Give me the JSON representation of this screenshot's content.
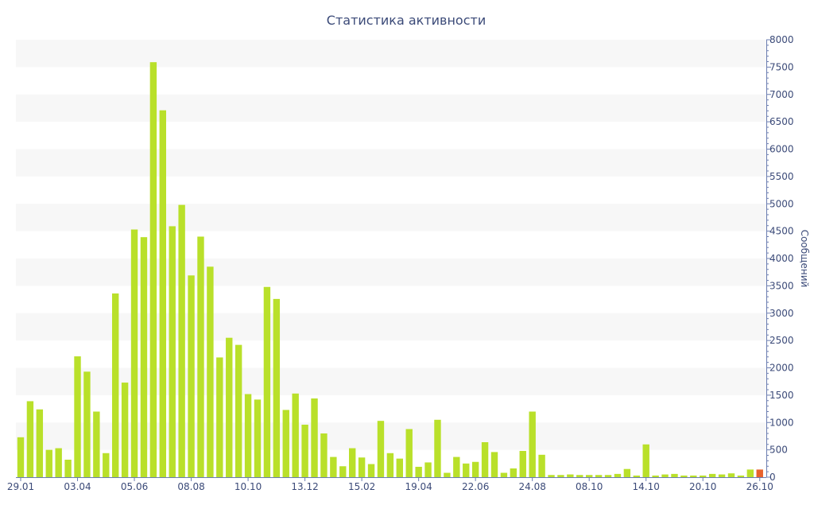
{
  "chart_data": {
    "type": "bar",
    "title": "Статистика активности",
    "ylabel": "Сообщений",
    "xlabel": "",
    "ylim": [
      0,
      8000
    ],
    "y_axis_side": "right",
    "y_ticks": [
      0,
      500,
      1000,
      1500,
      2000,
      2500,
      3000,
      3500,
      4000,
      4500,
      5000,
      5500,
      6000,
      6500,
      7000,
      7500,
      8000
    ],
    "x_tick_labels": [
      "29.01",
      "03.04",
      "05.06",
      "08.08",
      "10.10",
      "13.12",
      "15.02",
      "19.04",
      "22.06",
      "24.08",
      "08.10",
      "14.10",
      "20.10",
      "26.10"
    ],
    "x_tick_bar_index": [
      0,
      6,
      12,
      18,
      24,
      30,
      36,
      42,
      48,
      54,
      60,
      66,
      72,
      78
    ],
    "bar_color": "#b9e02a",
    "highlight_color": "#e8622c",
    "highlight_index": 78,
    "band_color": "#f7f7f7",
    "grid": "alternating horizontal bands",
    "legend": "none",
    "values": [
      730,
      1390,
      1240,
      500,
      530,
      320,
      2210,
      1930,
      1200,
      440,
      3360,
      1730,
      4530,
      4390,
      7590,
      6710,
      4590,
      4980,
      3690,
      4400,
      3850,
      2190,
      2550,
      2420,
      1520,
      1420,
      3480,
      3260,
      1230,
      1530,
      960,
      1440,
      800,
      370,
      200,
      530,
      360,
      240,
      1030,
      440,
      340,
      880,
      190,
      270,
      1050,
      80,
      370,
      250,
      280,
      640,
      460,
      80,
      160,
      480,
      1200,
      410,
      40,
      40,
      50,
      40,
      40,
      40,
      40,
      60,
      150,
      30,
      600,
      30,
      50,
      60,
      30,
      30,
      30,
      60,
      50,
      70,
      30,
      140,
      140
    ]
  }
}
